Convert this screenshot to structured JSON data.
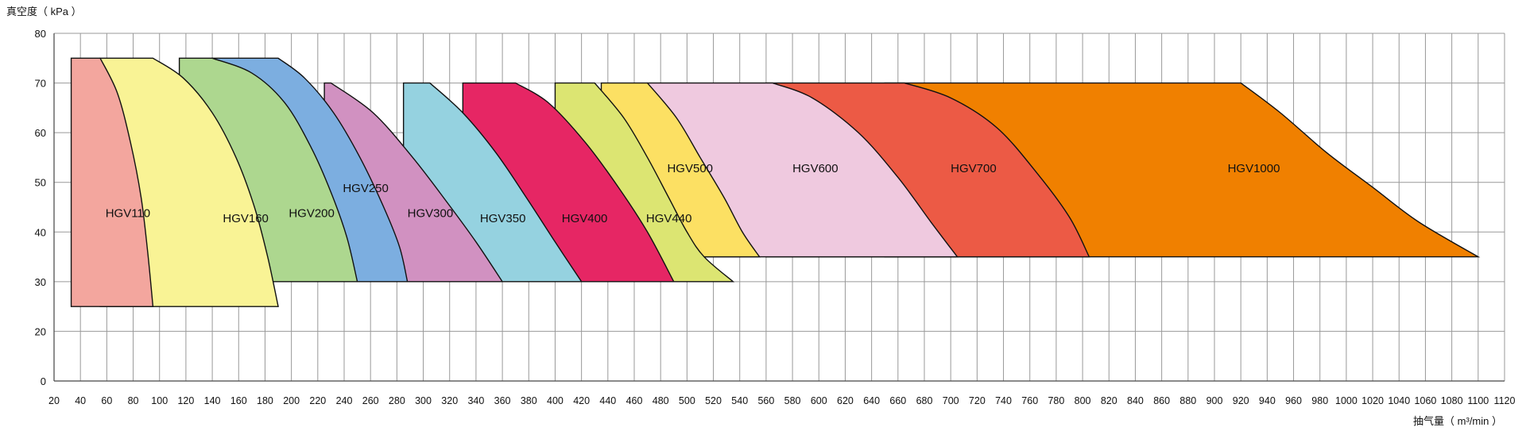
{
  "chart_data": {
    "type": "area",
    "title": "",
    "ylabel": "真空度（ kPa ）",
    "xlabel": "抽气量（ m³/min ）",
    "grid": true,
    "xlim": [
      20,
      1120
    ],
    "ylim_ticks": [
      0,
      20,
      30,
      40,
      50,
      60,
      70,
      80
    ],
    "x_ticks": [
      20,
      40,
      60,
      80,
      100,
      120,
      140,
      160,
      180,
      200,
      220,
      240,
      260,
      280,
      300,
      320,
      340,
      360,
      380,
      400,
      420,
      440,
      460,
      480,
      500,
      520,
      540,
      560,
      580,
      600,
      620,
      640,
      660,
      680,
      700,
      720,
      740,
      760,
      780,
      800,
      820,
      840,
      860,
      880,
      900,
      920,
      940,
      960,
      980,
      1000,
      1020,
      1040,
      1060,
      1080,
      1100,
      1120
    ],
    "series": [
      {
        "name": "HGV1000",
        "color": "#f08000",
        "label_at": [
          910,
          52
        ],
        "top": 70,
        "bottom": 35,
        "x_start": 650,
        "flat_end": 920,
        "x_end": 1100,
        "curve": [
          [
            920,
            70
          ],
          [
            950,
            64
          ],
          [
            985,
            56
          ],
          [
            1020,
            49
          ],
          [
            1055,
            42
          ],
          [
            1100,
            35
          ]
        ]
      },
      {
        "name": "HGV700",
        "color": "#ec5a45",
        "label_at": [
          700,
          52
        ],
        "top": 70,
        "bottom": 35,
        "x_start": 560,
        "flat_end": 665,
        "x_end": 805,
        "curve": [
          [
            665,
            70
          ],
          [
            700,
            67
          ],
          [
            735,
            61
          ],
          [
            765,
            52
          ],
          [
            790,
            43
          ],
          [
            805,
            35
          ]
        ]
      },
      {
        "name": "HGV600",
        "color": "#efc9df",
        "label_at": [
          580,
          52
        ],
        "top": 70,
        "bottom": 35,
        "x_start": 470,
        "flat_end": 565,
        "x_end": 705,
        "curve": [
          [
            565,
            70
          ],
          [
            595,
            67
          ],
          [
            630,
            60
          ],
          [
            660,
            51
          ],
          [
            685,
            42
          ],
          [
            705,
            35
          ]
        ]
      },
      {
        "name": "HGV500",
        "color": "#fce063",
        "label_at": [
          485,
          52
        ],
        "top": 70,
        "bottom": 35,
        "x_start": 435,
        "flat_end": 470,
        "x_end": 555,
        "curve": [
          [
            470,
            70
          ],
          [
            492,
            63
          ],
          [
            510,
            55
          ],
          [
            528,
            47
          ],
          [
            542,
            40
          ],
          [
            555,
            35
          ]
        ]
      },
      {
        "name": "HGV440",
        "color": "#dce572",
        "label_at": [
          469,
          42
        ],
        "top": 70,
        "bottom": 30,
        "x_start": 400,
        "flat_end": 430,
        "x_end": 535,
        "curve": [
          [
            430,
            70
          ],
          [
            452,
            63
          ],
          [
            470,
            55
          ],
          [
            486,
            47
          ],
          [
            500,
            40
          ],
          [
            513,
            35
          ],
          [
            535,
            30
          ]
        ]
      },
      {
        "name": "HGV400",
        "color": "#e62664",
        "label_at": [
          405,
          42
        ],
        "top": 70,
        "bottom": 30,
        "x_start": 330,
        "flat_end": 370,
        "x_end": 490,
        "curve": [
          [
            370,
            70
          ],
          [
            395,
            66
          ],
          [
            423,
            58
          ],
          [
            448,
            49
          ],
          [
            470,
            40
          ],
          [
            490,
            30
          ]
        ]
      },
      {
        "name": "HGV350",
        "color": "#95d2e0",
        "label_at": [
          343,
          42
        ],
        "top": 70,
        "bottom": 30,
        "x_start": 285,
        "flat_end": 305,
        "x_end": 420,
        "curve": [
          [
            305,
            70
          ],
          [
            330,
            64
          ],
          [
            355,
            56
          ],
          [
            378,
            47
          ],
          [
            400,
            38
          ],
          [
            420,
            30
          ]
        ]
      },
      {
        "name": "HGV300",
        "color": "#d191c1",
        "label_at": [
          288,
          43
        ],
        "top": 70,
        "bottom": 30,
        "x_start": 225,
        "flat_end": 230,
        "x_end": 360,
        "curve": [
          [
            230,
            70
          ],
          [
            262,
            64
          ],
          [
            292,
            55
          ],
          [
            318,
            46
          ],
          [
            340,
            38
          ],
          [
            360,
            30
          ]
        ]
      },
      {
        "name": "HGV250",
        "color": "#7caee0",
        "label_at": [
          239,
          48
        ],
        "top": 75,
        "bottom": 30,
        "x_start": 140,
        "flat_end": 190,
        "x_end": 288,
        "curve": [
          [
            190,
            75
          ],
          [
            210,
            71
          ],
          [
            232,
            64
          ],
          [
            252,
            55
          ],
          [
            270,
            45
          ],
          [
            282,
            37
          ],
          [
            288,
            30
          ]
        ]
      },
      {
        "name": "HGV200",
        "color": "#add78f",
        "label_at": [
          198,
          43
        ],
        "top": 75,
        "bottom": 30,
        "x_start": 115,
        "flat_end": 140,
        "x_end": 250,
        "curve": [
          [
            140,
            75
          ],
          [
            170,
            72
          ],
          [
            195,
            66
          ],
          [
            215,
            57
          ],
          [
            230,
            48
          ],
          [
            242,
            39
          ],
          [
            250,
            30
          ]
        ]
      },
      {
        "name": "HGV160",
        "color": "#f9f395",
        "label_at": [
          148,
          42
        ],
        "top": 75,
        "bottom": 25,
        "x_start": 55,
        "flat_end": 95,
        "x_end": 190,
        "curve": [
          [
            95,
            75
          ],
          [
            118,
            71
          ],
          [
            140,
            64
          ],
          [
            158,
            55
          ],
          [
            172,
            45
          ],
          [
            182,
            35
          ],
          [
            190,
            25
          ]
        ]
      },
      {
        "name": "HGV110",
        "color": "#f3a69e",
        "label_at": [
          59,
          43
        ],
        "top": 75,
        "bottom": 25,
        "x_start": 33,
        "flat_end": 55,
        "x_end": 95,
        "curve": [
          [
            55,
            75
          ],
          [
            68,
            68
          ],
          [
            78,
            58
          ],
          [
            86,
            47
          ],
          [
            91,
            36
          ],
          [
            95,
            25
          ]
        ]
      }
    ]
  }
}
